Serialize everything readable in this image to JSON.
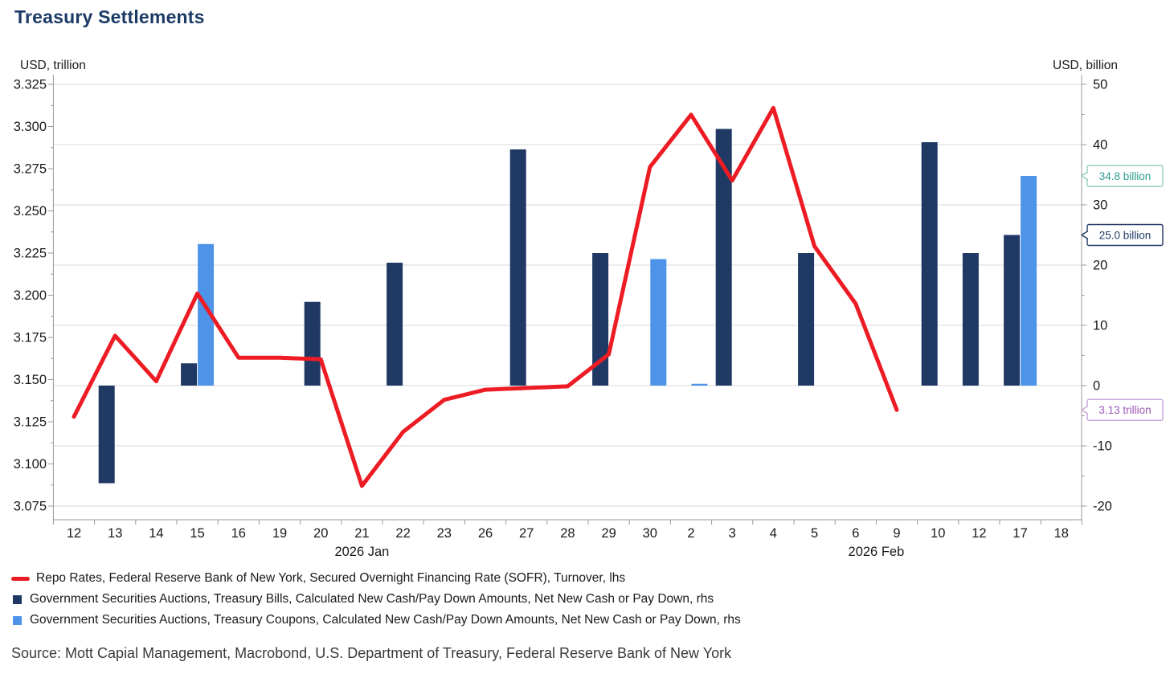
{
  "title": "Treasury Settlements",
  "left_axis": {
    "label": "USD, trillion",
    "min": 3.075,
    "max": 3.325,
    "step": 0.025,
    "decimals": 3
  },
  "right_axis": {
    "label": "USD, billion",
    "min": -20,
    "max": 50,
    "step": 10,
    "decimals": 0
  },
  "chart_data": {
    "type": "line+bar",
    "categories": [
      "12",
      "13",
      "14",
      "15",
      "16",
      "19",
      "20",
      "21",
      "22",
      "23",
      "26",
      "27",
      "28",
      "29",
      "30",
      "2",
      "3",
      "4",
      "5",
      "6",
      "9",
      "10",
      "12",
      "17",
      "18"
    ],
    "month_labels": [
      {
        "text": "2026 Jan",
        "from_index": 0,
        "to_index": 14
      },
      {
        "text": "2026 Feb",
        "from_index": 15,
        "to_index": 24
      }
    ],
    "series": [
      {
        "name": "Repo Rates, Federal Reserve Bank of New York, Secured Overnight Financing Rate (SOFR), Turnover, lhs",
        "type": "line",
        "axis": "left",
        "color": "#ED1C24",
        "values": [
          3.128,
          3.176,
          3.149,
          3.201,
          3.163,
          3.163,
          3.162,
          3.087,
          3.119,
          3.138,
          3.144,
          3.145,
          3.146,
          3.165,
          3.276,
          3.307,
          3.268,
          3.311,
          3.229,
          3.195,
          3.132,
          null,
          null,
          null,
          null
        ]
      },
      {
        "name": "Government Securities Auctions, Treasury Bills, Calculated New Cash/Pay Down Amounts, Net New Cash or Pay Down, rhs",
        "type": "bar",
        "axis": "right",
        "color": "#1F3864",
        "values": [
          null,
          -16.2,
          null,
          3.7,
          null,
          null,
          13.9,
          null,
          20.4,
          null,
          null,
          39.2,
          null,
          22.0,
          null,
          null,
          42.6,
          null,
          22.0,
          null,
          null,
          40.4,
          22.0,
          25.0,
          null
        ]
      },
      {
        "name": "Government Securities Auctions, Treasury Coupons, Calculated New Cash/Pay Down Amounts, Net New Cash or Pay Down, rhs",
        "type": "bar",
        "axis": "right",
        "color": "#4D94E9",
        "values": [
          null,
          null,
          null,
          23.5,
          null,
          null,
          null,
          null,
          null,
          null,
          null,
          null,
          null,
          null,
          21.0,
          0.3,
          null,
          null,
          null,
          null,
          null,
          null,
          null,
          34.8,
          null
        ]
      }
    ],
    "grid": "horizontal-right-ticks",
    "legend_position": "bottom-left"
  },
  "callouts": [
    {
      "text": "34.8 billion",
      "text_color": "#2F9E8F",
      "border_color": "#96CCC1",
      "anchor_axis": "right",
      "anchor_value": 34.8
    },
    {
      "text": "25.0 billion",
      "text_color": "#1F3864",
      "border_color": "#1F3864",
      "anchor_axis": "right",
      "anchor_value": 25.0
    },
    {
      "text": "3.13 trillion",
      "text_color": "#9B59B6",
      "border_color": "#C7A4DA",
      "anchor_axis": "left",
      "anchor_value": 3.132
    }
  ],
  "source": "Source: Mott Capial Management, Macrobond, U.S. Department of Treasury, Federal Reserve Bank of New York"
}
